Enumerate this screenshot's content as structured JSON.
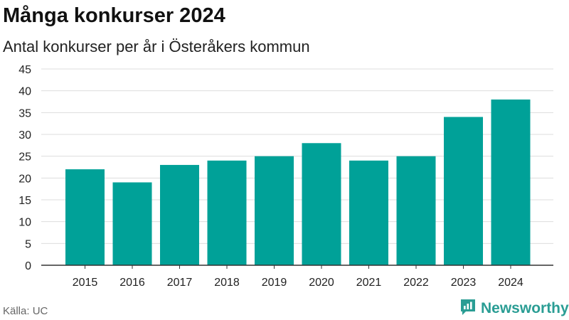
{
  "colors": {
    "bar": "#00a198",
    "grid": "#dddddd",
    "axis": "#333333",
    "text": "#222222",
    "brand": "#2a9d94"
  },
  "footer": {
    "source": "Källa: UC",
    "brand_name": "Newsworthy",
    "brand_icon": "newsworthy-logo-icon"
  },
  "chart_data": {
    "type": "bar",
    "title": "Många konkurser 2024",
    "subtitle": "Antal konkurser per år i Österåkers kommun",
    "xlabel": "",
    "ylabel": "",
    "categories": [
      "2015",
      "2016",
      "2017",
      "2018",
      "2019",
      "2020",
      "2021",
      "2022",
      "2023",
      "2024"
    ],
    "values": [
      22,
      19,
      23,
      24,
      25,
      28,
      24,
      25,
      34,
      38
    ],
    "ylim": [
      0,
      45
    ],
    "yticks": [
      "0",
      "5",
      "10",
      "15",
      "20",
      "25",
      "30",
      "35",
      "40",
      "45"
    ],
    "grid": true,
    "legend": "none"
  }
}
